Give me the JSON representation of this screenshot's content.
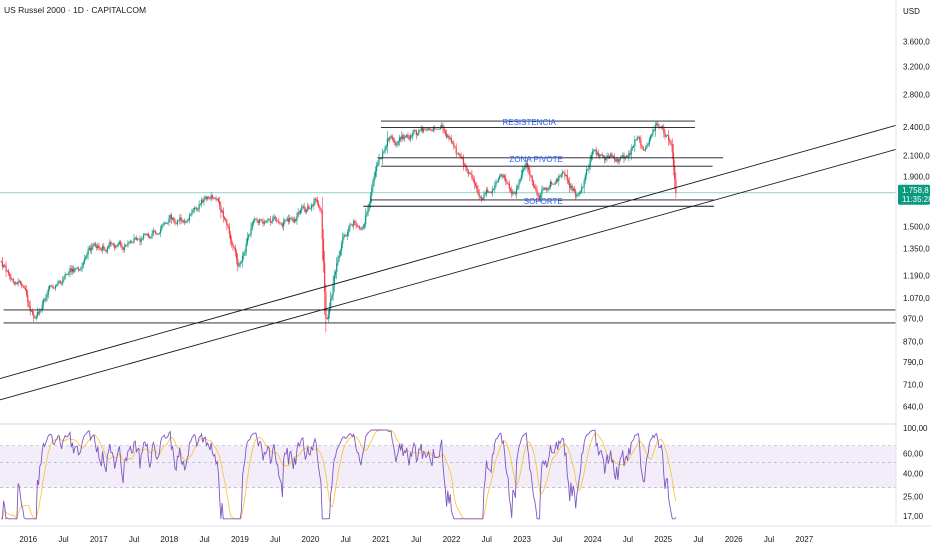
{
  "header": {
    "title": "US Russel 2000 · 1D · CAPITALCOM",
    "currency": "USD"
  },
  "price_badge": {
    "value": "1.758,8",
    "countdown": "11:35:28",
    "color": "#089981"
  },
  "colors": {
    "up": "#089981",
    "down": "#f23645",
    "rsi_line": "#7e57c2",
    "rsi_ma": "#fbc02d",
    "rsi_band": "#ede7f6",
    "annotation": "#2962ff",
    "drawing": "#131722",
    "price_line": "#089981"
  },
  "chart_data": [
    {
      "type": "candlestick",
      "title": "US Russel 2000 · 1D · CAPITALCOM",
      "y_scale": "log",
      "yunit": "USD",
      "ylim": [
        600,
        3800
      ],
      "y_ticks": [
        {
          "value": 640,
          "label": "640,0"
        },
        {
          "value": 710,
          "label": "710,0"
        },
        {
          "value": 790,
          "label": "790,0"
        },
        {
          "value": 870,
          "label": "870,0"
        },
        {
          "value": 970,
          "label": "970,0"
        },
        {
          "value": 1070,
          "label": "1.070,0"
        },
        {
          "value": 1190,
          "label": "1.190,0"
        },
        {
          "value": 1350,
          "label": "1.350,0"
        },
        {
          "value": 1500,
          "label": "1.500,0"
        },
        {
          "value": 1900,
          "label": "1.900,0"
        },
        {
          "value": 2100,
          "label": "2.100,0"
        },
        {
          "value": 2400,
          "label": "2.400,0"
        },
        {
          "value": 2800,
          "label": "2.800,0"
        },
        {
          "value": 3200,
          "label": "3.200,0"
        },
        {
          "value": 3600,
          "label": "3.600,0"
        }
      ],
      "x_ticks": [
        {
          "t": 2016.0,
          "label": "2016"
        },
        {
          "t": 2016.5,
          "label": "Jul"
        },
        {
          "t": 2017.0,
          "label": "2017"
        },
        {
          "t": 2017.5,
          "label": "Jul"
        },
        {
          "t": 2018.0,
          "label": "2018"
        },
        {
          "t": 2018.5,
          "label": "Jul"
        },
        {
          "t": 2019.0,
          "label": "2019"
        },
        {
          "t": 2019.5,
          "label": "Jul"
        },
        {
          "t": 2020.0,
          "label": "2020"
        },
        {
          "t": 2020.5,
          "label": "Jul"
        },
        {
          "t": 2021.0,
          "label": "2021"
        },
        {
          "t": 2021.5,
          "label": "Jul"
        },
        {
          "t": 2022.0,
          "label": "2022"
        },
        {
          "t": 2022.5,
          "label": "Jul"
        },
        {
          "t": 2023.0,
          "label": "2023"
        },
        {
          "t": 2023.5,
          "label": "Jul"
        },
        {
          "t": 2024.0,
          "label": "2024"
        },
        {
          "t": 2024.5,
          "label": "Jul"
        },
        {
          "t": 2025.0,
          "label": "2025"
        },
        {
          "t": 2025.5,
          "label": "Jul"
        },
        {
          "t": 2026.0,
          "label": "2026"
        },
        {
          "t": 2026.5,
          "label": "Jul"
        },
        {
          "t": 2027.0,
          "label": "2027"
        }
      ],
      "xlim": [
        2015.6,
        2028.3
      ],
      "last_price": 1758.8,
      "price_path": [
        [
          2015.6,
          1290
        ],
        [
          2015.75,
          1195
        ],
        [
          2015.9,
          1160
        ],
        [
          2016.05,
          1000
        ],
        [
          2016.1,
          955
        ],
        [
          2016.3,
          1120
        ],
        [
          2016.5,
          1200
        ],
        [
          2016.7,
          1230
        ],
        [
          2016.85,
          1370
        ],
        [
          2017.0,
          1375
        ],
        [
          2017.3,
          1390
        ],
        [
          2017.6,
          1410
        ],
        [
          2017.9,
          1520
        ],
        [
          2018.1,
          1560
        ],
        [
          2018.25,
          1530
        ],
        [
          2018.5,
          1690
        ],
        [
          2018.7,
          1740
        ],
        [
          2018.8,
          1560
        ],
        [
          2018.98,
          1270
        ],
        [
          2019.2,
          1560
        ],
        [
          2019.5,
          1575
        ],
        [
          2019.8,
          1560
        ],
        [
          2020.05,
          1700
        ],
        [
          2020.15,
          1700
        ],
        [
          2020.22,
          1000
        ],
        [
          2020.25,
          990
        ],
        [
          2020.45,
          1450
        ],
        [
          2020.75,
          1550
        ],
        [
          2020.95,
          2000
        ],
        [
          2021.1,
          2300
        ],
        [
          2021.5,
          2300
        ],
        [
          2021.85,
          2440
        ],
        [
          2022.1,
          2080
        ],
        [
          2022.45,
          1720
        ],
        [
          2022.65,
          1920
        ],
        [
          2022.9,
          1760
        ],
        [
          2023.05,
          1960
        ],
        [
          2023.25,
          1760
        ],
        [
          2023.55,
          1950
        ],
        [
          2023.82,
          1700
        ],
        [
          2024.0,
          2060
        ],
        [
          2024.3,
          2080
        ],
        [
          2024.5,
          2000
        ],
        [
          2024.62,
          2260
        ],
        [
          2024.75,
          2150
        ],
        [
          2024.9,
          2440
        ],
        [
          2025.05,
          2290
        ],
        [
          2025.12,
          2200
        ],
        [
          2025.18,
          1758.8
        ]
      ],
      "horizontal_lines": [
        {
          "name": "resistencia-top",
          "price": 2470,
          "t_from": 2021.0,
          "t_to": 2025.45
        },
        {
          "name": "resistencia-bottom",
          "price": 2395,
          "t_from": 2021.0,
          "t_to": 2025.45
        },
        {
          "name": "zona-pivote-top",
          "price": 2075,
          "t_from": 2020.95,
          "t_to": 2025.85
        },
        {
          "name": "zona-pivote-bottom",
          "price": 1995,
          "t_from": 2021.0,
          "t_to": 2025.7
        },
        {
          "name": "soporte-top",
          "price": 1700,
          "t_from": 2020.85,
          "t_to": 2025.72
        },
        {
          "name": "soporte-bottom",
          "price": 1650,
          "t_from": 2020.75,
          "t_to": 2025.72
        },
        {
          "name": "support-2020-top",
          "price": 1010,
          "t_from": 2015.65,
          "t_to": 2028.3
        },
        {
          "name": "support-2020-bottom",
          "price": 950,
          "t_from": 2015.65,
          "t_to": 2028.3
        }
      ],
      "trend_lines": [
        {
          "name": "trendline-upper",
          "from": [
            2015.6,
            730
          ],
          "to": [
            2028.3,
            2420
          ]
        },
        {
          "name": "trendline-lower",
          "from": [
            2015.6,
            660
          ],
          "to": [
            2028.3,
            2160
          ]
        }
      ],
      "annotations": [
        {
          "name": "resistencia-label",
          "text": "RESISTENCIA",
          "t": 2023.1,
          "price": 2460
        },
        {
          "name": "zona-pivote-label",
          "text": "ZONA PIVOTE",
          "t": 2023.2,
          "price": 2065
        },
        {
          "name": "soporte-label",
          "text": "SOPORTE",
          "t": 2023.3,
          "price": 1690
        }
      ]
    },
    {
      "type": "line",
      "title": "",
      "ylim": [
        15,
        100
      ],
      "y_scale": "log",
      "y_ticks": [
        {
          "value": 17,
          "label": "17,00"
        },
        {
          "value": 25,
          "label": "25,00"
        },
        {
          "value": 40,
          "label": "40,00"
        },
        {
          "value": 60,
          "label": "60,00"
        },
        {
          "value": 100,
          "label": "100,00"
        }
      ],
      "band": [
        30,
        70
      ],
      "midline": 50,
      "last_value": 16.5
    }
  ]
}
